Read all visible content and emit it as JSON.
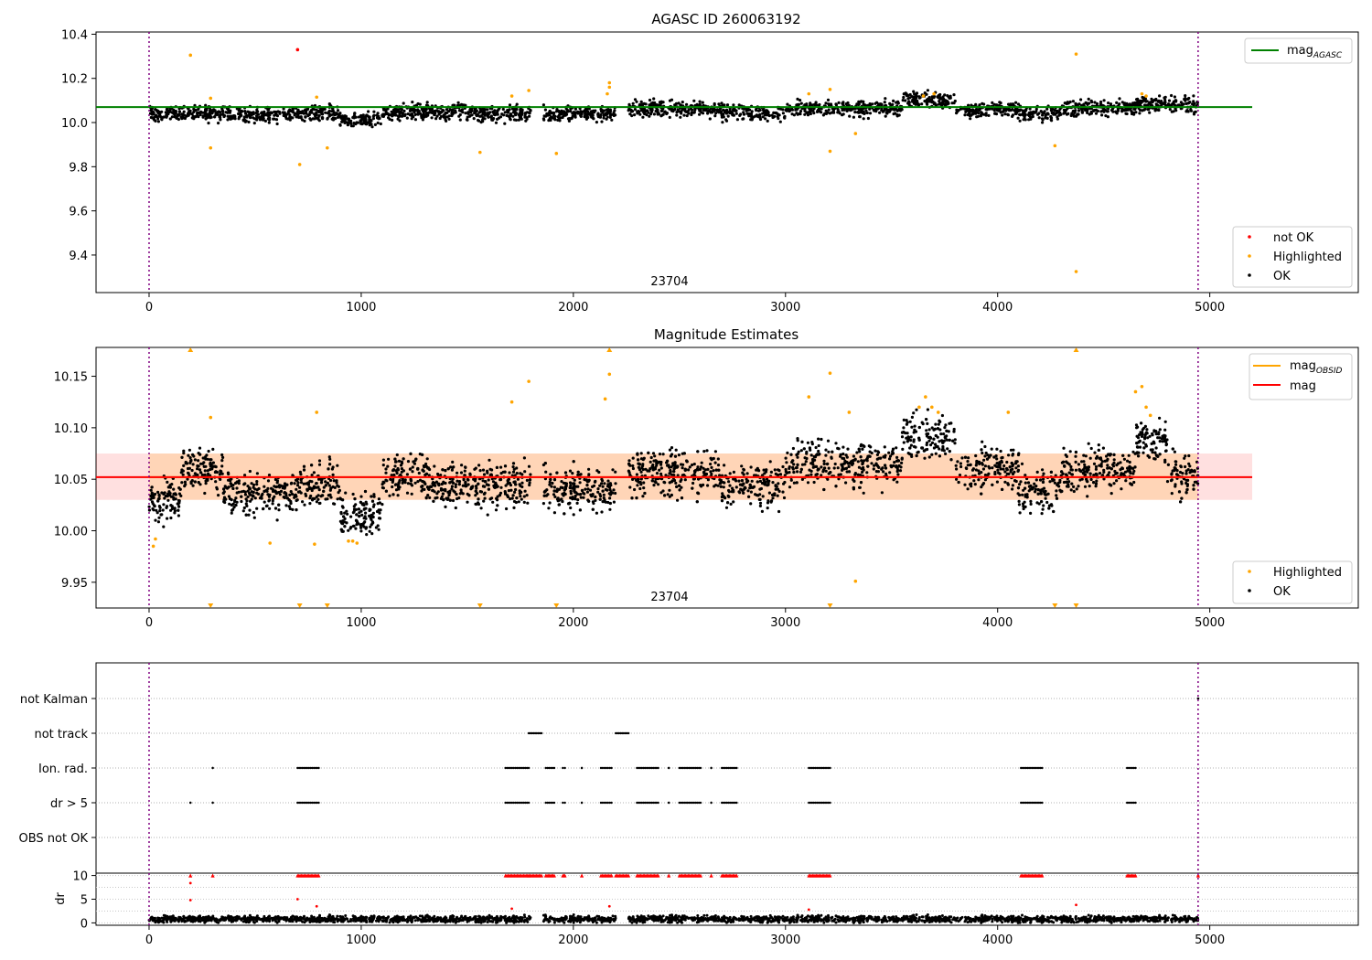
{
  "chart_data": [
    {
      "type": "scatter",
      "title": "AGASC ID 260063192",
      "xlim": [
        -250,
        5700
      ],
      "ylim": [
        9.23,
        10.41
      ],
      "xticks": [
        0,
        1000,
        2000,
        3000,
        4000,
        5000
      ],
      "xtick_labels": [
        "0",
        "1000",
        "2000",
        "3000",
        "4000",
        "5000"
      ],
      "yticks": [
        9.4,
        9.6,
        9.8,
        10.0,
        10.2,
        10.4
      ],
      "ytick_labels": [
        "9.4",
        "9.6",
        "9.8",
        "10.0",
        "10.2",
        "10.4"
      ],
      "obsid_label": "23704",
      "obsid_boundaries": [
        0,
        4945
      ],
      "reference_line": {
        "name_main": "mag",
        "name_sub": "AGASC",
        "y": 10.07,
        "x_range": [
          -250,
          5200
        ],
        "color": "#008000"
      },
      "legends": {
        "top-right": [
          "mag_AGASC"
        ],
        "bottom-right": [
          {
            "name": "not OK",
            "color": "#ff0000"
          },
          {
            "name": "Highlighted",
            "color": "#ffa500"
          },
          {
            "name": "OK",
            "color": "#000000"
          }
        ]
      },
      "series": [
        {
          "name": "OK",
          "color": "#000000",
          "x_range": [
            0,
            4945
          ],
          "baseline": 10.04,
          "spread": 0.03,
          "segments": [
            [
              0,
              350,
              10.04
            ],
            [
              350,
              700,
              10.035
            ],
            [
              700,
              900,
              10.04
            ],
            [
              900,
              1100,
              10.015
            ],
            [
              1100,
              1500,
              10.05
            ],
            [
              1500,
              1800,
              10.04
            ],
            [
              1850,
              2200,
              10.04
            ],
            [
              2250,
              2700,
              10.06
            ],
            [
              2700,
              3000,
              10.045
            ],
            [
              3000,
              3550,
              10.065
            ],
            [
              3550,
              3800,
              10.1
            ],
            [
              3800,
              4100,
              10.06
            ],
            [
              4100,
              4300,
              10.045
            ],
            [
              4300,
              4650,
              10.065
            ],
            [
              4650,
              4945,
              10.08
            ]
          ]
        },
        {
          "name": "Highlighted",
          "color": "#ffa500",
          "points": [
            [
              195,
              10.305
            ],
            [
              290,
              9.885
            ],
            [
              290,
              10.11
            ],
            [
              710,
              9.81
            ],
            [
              790,
              10.115
            ],
            [
              840,
              9.885
            ],
            [
              1560,
              9.865
            ],
            [
              1710,
              10.12
            ],
            [
              1790,
              10.145
            ],
            [
              1920,
              9.86
            ],
            [
              2160,
              10.13
            ],
            [
              2170,
              10.16
            ],
            [
              2170,
              10.18
            ],
            [
              3110,
              10.13
            ],
            [
              3210,
              9.87
            ],
            [
              3210,
              10.15
            ],
            [
              3330,
              9.95
            ],
            [
              3650,
              10.12
            ],
            [
              3700,
              10.13
            ],
            [
              4270,
              9.895
            ],
            [
              4370,
              10.31
            ],
            [
              4370,
              9.325
            ],
            [
              4680,
              10.13
            ],
            [
              4700,
              10.12
            ]
          ]
        },
        {
          "name": "not OK",
          "color": "#ff0000",
          "points": [
            [
              700,
              10.33
            ]
          ]
        }
      ]
    },
    {
      "type": "scatter",
      "title": "Magnitude Estimates",
      "xlim": [
        -250,
        5700
      ],
      "ylim": [
        9.925,
        10.178
      ],
      "xticks": [
        0,
        1000,
        2000,
        3000,
        4000,
        5000
      ],
      "xtick_labels": [
        "0",
        "1000",
        "2000",
        "3000",
        "4000",
        "5000"
      ],
      "yticks": [
        9.95,
        10.0,
        10.05,
        10.1,
        10.15
      ],
      "ytick_labels": [
        "9.95",
        "10.00",
        "10.05",
        "10.10",
        "10.15"
      ],
      "obsid_label": "23704",
      "obsid_boundaries": [
        0,
        4945
      ],
      "mag_line": {
        "name": "mag",
        "y": 10.052,
        "color": "#ff0000",
        "band": [
          10.03,
          10.075
        ],
        "x_range": [
          -250,
          5200
        ]
      },
      "mag_obsid": {
        "name_main": "mag",
        "name_sub": "OBSID",
        "y": 10.052,
        "band": [
          10.03,
          10.075
        ],
        "x_range": [
          0,
          4945
        ],
        "color": "#ffa500"
      },
      "legends": {
        "top-right": [
          "mag_OBSID",
          "mag"
        ],
        "bottom-right": [
          {
            "name": "Highlighted",
            "color": "#ffa500"
          },
          {
            "name": "OK",
            "color": "#000000"
          }
        ]
      },
      "series": [
        {
          "name": "OK",
          "color": "#000000",
          "x_range": [
            0,
            4945
          ],
          "spread": 0.018,
          "segments": [
            [
              0,
              150,
              10.03
            ],
            [
              150,
              350,
              10.06
            ],
            [
              350,
              700,
              10.035
            ],
            [
              700,
              900,
              10.045
            ],
            [
              900,
              1100,
              10.015
            ],
            [
              1100,
              1300,
              10.055
            ],
            [
              1300,
              1800,
              10.045
            ],
            [
              1850,
              2200,
              10.04
            ],
            [
              2250,
              2700,
              10.055
            ],
            [
              2700,
              3000,
              10.045
            ],
            [
              3000,
              3550,
              10.065
            ],
            [
              3550,
              3800,
              10.09
            ],
            [
              3800,
              4100,
              10.06
            ],
            [
              4100,
              4300,
              10.04
            ],
            [
              4300,
              4650,
              10.06
            ],
            [
              4650,
              4800,
              10.085
            ],
            [
              4800,
              4945,
              10.055
            ]
          ]
        },
        {
          "name": "Highlighted",
          "color": "#ffa500",
          "points": [
            [
              20,
              9.985
            ],
            [
              30,
              9.992
            ],
            [
              290,
              10.11
            ],
            [
              570,
              9.988
            ],
            [
              780,
              9.987
            ],
            [
              790,
              10.115
            ],
            [
              940,
              9.99
            ],
            [
              960,
              9.99
            ],
            [
              980,
              9.988
            ],
            [
              1710,
              10.125
            ],
            [
              1790,
              10.145
            ],
            [
              2150,
              10.128
            ],
            [
              2170,
              10.152
            ],
            [
              3110,
              10.13
            ],
            [
              3210,
              10.153
            ],
            [
              3300,
              10.115
            ],
            [
              3330,
              9.951
            ],
            [
              3630,
              10.12
            ],
            [
              3660,
              10.13
            ],
            [
              3690,
              10.12
            ],
            [
              3720,
              10.115
            ],
            [
              4050,
              10.115
            ],
            [
              4650,
              10.135
            ],
            [
              4680,
              10.14
            ],
            [
              4700,
              10.12
            ],
            [
              4720,
              10.112
            ]
          ]
        },
        {
          "name": "Highlighted (off-axis high)",
          "color": "#ffa500",
          "marker": "triangle-up",
          "points": [
            [
              195,
              10.178
            ],
            [
              2170,
              10.178
            ],
            [
              4370,
              10.178
            ]
          ]
        },
        {
          "name": "Highlighted (off-axis low)",
          "color": "#ffa500",
          "marker": "triangle-down",
          "points": [
            [
              290,
              9.925
            ],
            [
              710,
              9.925
            ],
            [
              840,
              9.925
            ],
            [
              1560,
              9.925
            ],
            [
              1920,
              9.925
            ],
            [
              3210,
              9.925
            ],
            [
              4270,
              9.925
            ],
            [
              4370,
              9.925
            ]
          ]
        }
      ]
    },
    {
      "type": "scatter",
      "title": "",
      "xlim": [
        -250,
        5700
      ],
      "categories": [
        "not Kalman",
        "not track",
        "Ion. rad.",
        "dr > 5",
        "OBS not OK"
      ],
      "obsid_boundaries": [
        0,
        4945
      ],
      "flag_ranges": {
        "not Kalman": [
          [
            4945,
            4945
          ]
        ],
        "not track": [
          [
            1790,
            1850
          ],
          [
            2200,
            2260
          ]
        ],
        "Ion. rad.": [
          [
            300,
            300
          ],
          [
            700,
            800
          ],
          [
            1680,
            1790
          ],
          [
            1870,
            1910
          ],
          [
            1950,
            1960
          ],
          [
            2040,
            2040
          ],
          [
            2130,
            2180
          ],
          [
            2300,
            2400
          ],
          [
            2450,
            2450
          ],
          [
            2500,
            2600
          ],
          [
            2650,
            2650
          ],
          [
            2700,
            2770
          ],
          [
            3110,
            3210
          ],
          [
            4110,
            4210
          ],
          [
            4610,
            4650
          ]
        ],
        "dr > 5": [
          [
            195,
            195
          ],
          [
            300,
            300
          ],
          [
            700,
            800
          ],
          [
            1680,
            1790
          ],
          [
            1870,
            1910
          ],
          [
            1950,
            1960
          ],
          [
            2040,
            2040
          ],
          [
            2130,
            2180
          ],
          [
            2300,
            2400
          ],
          [
            2450,
            2450
          ],
          [
            2500,
            2600
          ],
          [
            2650,
            2650
          ],
          [
            2700,
            2770
          ],
          [
            3110,
            3210
          ],
          [
            4110,
            4210
          ],
          [
            4610,
            4650
          ]
        ],
        "OBS not OK": []
      }
    },
    {
      "type": "scatter",
      "ylabel": "dr",
      "xlim": [
        -250,
        5700
      ],
      "ylim": [
        -0.5,
        10.5
      ],
      "xticks": [
        0,
        1000,
        2000,
        3000,
        4000,
        5000
      ],
      "xtick_labels": [
        "0",
        "1000",
        "2000",
        "3000",
        "4000",
        "5000"
      ],
      "yticks": [
        0,
        5,
        10
      ],
      "ytick_labels": [
        "0",
        "5",
        "10"
      ],
      "obsid_boundaries": [
        0,
        4945
      ],
      "series": [
        {
          "name": "OK",
          "color": "#000000",
          "x_range": [
            0,
            4945
          ],
          "baseline": 0.8,
          "spread": 0.6
        },
        {
          "name": "not OK",
          "color": "#ff0000",
          "points": [
            [
              195,
              4.8
            ],
            [
              195,
              8.4
            ],
            [
              700,
              5.0
            ],
            [
              790,
              3.5
            ],
            [
              1710,
              3.0
            ],
            [
              2170,
              3.5
            ],
            [
              3110,
              2.8
            ],
            [
              4370,
              3.8
            ]
          ]
        },
        {
          "name": "not OK (clipped)",
          "color": "#ff0000",
          "marker": "triangle-up",
          "ranges": [
            [
              195,
              195
            ],
            [
              300,
              300
            ],
            [
              700,
              800
            ],
            [
              1680,
              1790
            ],
            [
              1790,
              1850
            ],
            [
              1870,
              1910
            ],
            [
              1950,
              1960
            ],
            [
              2040,
              2040
            ],
            [
              2130,
              2180
            ],
            [
              2200,
              2260
            ],
            [
              2300,
              2400
            ],
            [
              2450,
              2450
            ],
            [
              2500,
              2600
            ],
            [
              2650,
              2650
            ],
            [
              2700,
              2770
            ],
            [
              3110,
              3210
            ],
            [
              4110,
              4210
            ],
            [
              4610,
              4650
            ],
            [
              4945,
              4945
            ]
          ]
        }
      ]
    }
  ]
}
